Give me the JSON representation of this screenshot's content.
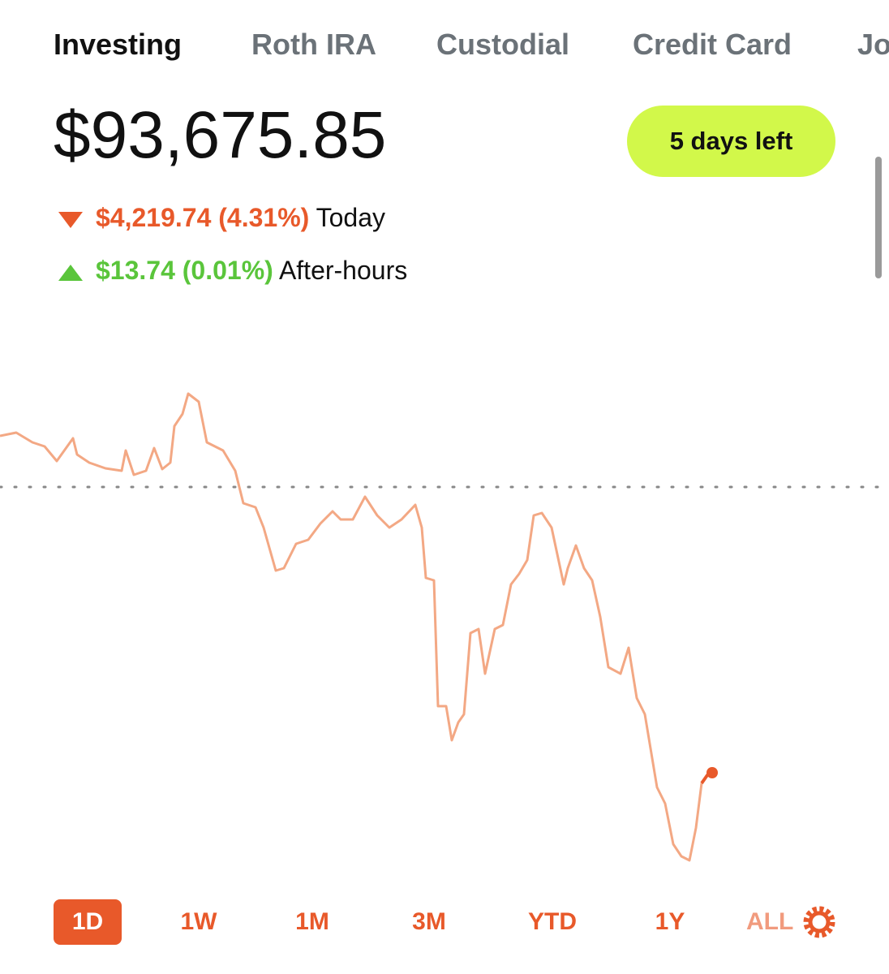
{
  "tabs": [
    "Investing",
    "Roth IRA",
    "Custodial",
    "Credit Card",
    "Jo"
  ],
  "balance": "$93,675.85",
  "badge": "5 days left",
  "today": {
    "change": "$4,219.74 (4.31%)",
    "label": "Today"
  },
  "after_hours": {
    "change": "$13.74 (0.01%)",
    "label": "After-hours"
  },
  "ranges": [
    "1D",
    "1W",
    "1M",
    "3M",
    "YTD",
    "1Y",
    "ALL"
  ]
}
